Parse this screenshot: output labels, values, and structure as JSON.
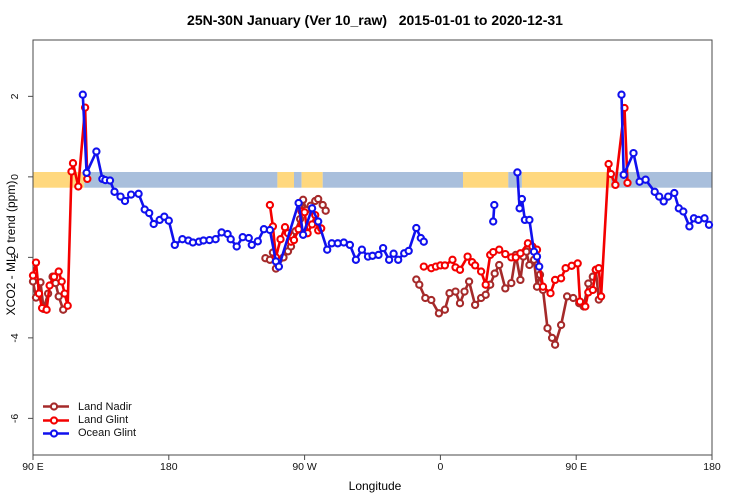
{
  "title": "25N-30N January (Ver 10_raw)   2015-01-01 to 2020-12-31",
  "chart_data": {
    "type": "line",
    "title": "25N-30N January (Ver 10_raw)   2015-01-01 to 2020-12-31",
    "xlabel": "Longitude",
    "ylabel": "XCO2 - MLO trend (ppm)",
    "legend_position": "bottom-left",
    "grid": false,
    "x_axis": {
      "range": [
        90,
        540
      ],
      "note": "longitude wraps eastward from 90E around the globe to 180",
      "ticks": [
        {
          "lon": 90,
          "label": "90 E"
        },
        {
          "lon": 180,
          "label": "180"
        },
        {
          "lon": 270,
          "label": "90 W"
        },
        {
          "lon": 360,
          "label": "0"
        },
        {
          "lon": 450,
          "label": "90 E"
        },
        {
          "lon": 540,
          "label": "180"
        }
      ]
    },
    "y_axis": {
      "range": [
        -6.91,
        3.4
      ],
      "ticks": [
        2,
        0,
        -2,
        -4,
        -6
      ]
    },
    "surface_band": {
      "top_ppm": 0.12,
      "bottom_ppm": -0.27,
      "land_color": "#FFD87E",
      "ocean_color": "#A9BFDC",
      "segments": [
        {
          "from": 90,
          "to": 124,
          "type": "land"
        },
        {
          "from": 124,
          "to": 252,
          "type": "ocean"
        },
        {
          "from": 252,
          "to": 263,
          "type": "land"
        },
        {
          "from": 263,
          "to": 268,
          "type": "ocean"
        },
        {
          "from": 268,
          "to": 282,
          "type": "land"
        },
        {
          "from": 282,
          "to": 375,
          "type": "ocean"
        },
        {
          "from": 375,
          "to": 405,
          "type": "land"
        },
        {
          "from": 405,
          "to": 414,
          "type": "ocean"
        },
        {
          "from": 414,
          "to": 473,
          "type": "land"
        },
        {
          "from": 473,
          "to": 540,
          "type": "ocean"
        }
      ]
    },
    "series": [
      {
        "name": "Land Nadir",
        "color": "#A52A2A",
        "segments": [
          [
            [
              90,
              -2.6
            ],
            [
              92,
              -3.0
            ],
            [
              95,
              -2.62
            ],
            [
              97,
              -3.28
            ],
            [
              100,
              -2.9
            ],
            [
              103,
              -2.48
            ],
            [
              105,
              -2.64
            ],
            [
              107,
              -2.97
            ],
            [
              110,
              -3.3
            ]
          ],
          [
            [
              244,
              -2.02
            ],
            [
              247,
              -2.06
            ],
            [
              249,
              -1.88
            ],
            [
              251,
              -2.28
            ],
            [
              253,
              -2.06
            ],
            [
              256,
              -2.0
            ],
            [
              259,
              -1.85
            ],
            [
              261,
              -1.73
            ],
            [
              264,
              -1.35
            ],
            [
              267,
              -1.05
            ],
            [
              269,
              -0.57
            ],
            [
              271,
              -0.82
            ],
            [
              274,
              -0.72
            ],
            [
              277,
              -0.6
            ],
            [
              279,
              -0.55
            ],
            [
              282,
              -0.7
            ],
            [
              284,
              -0.84
            ]
          ],
          [
            [
              344,
              -2.55
            ],
            [
              346,
              -2.68
            ],
            [
              350,
              -3.01
            ],
            [
              354,
              -3.06
            ],
            [
              359,
              -3.39
            ],
            [
              363,
              -3.3
            ],
            [
              366,
              -2.89
            ],
            [
              370,
              -2.85
            ],
            [
              373,
              -3.14
            ],
            [
              376,
              -2.85
            ],
            [
              379,
              -2.6
            ],
            [
              383,
              -3.18
            ],
            [
              387,
              -3.01
            ],
            [
              390,
              -2.93
            ],
            [
              393,
              -2.68
            ],
            [
              396,
              -2.4
            ],
            [
              399,
              -2.19
            ],
            [
              403,
              -2.77
            ],
            [
              407,
              -2.64
            ],
            [
              410,
              -1.94
            ],
            [
              413,
              -2.56
            ],
            [
              415,
              -1.98
            ],
            [
              417,
              -1.86
            ],
            [
              419,
              -2.19
            ],
            [
              422,
              -2.06
            ],
            [
              424,
              -2.73
            ],
            [
              426,
              -2.43
            ],
            [
              428,
              -2.81
            ],
            [
              431,
              -3.76
            ],
            [
              434,
              -4.0
            ],
            [
              436,
              -4.17
            ],
            [
              440,
              -3.68
            ],
            [
              444,
              -2.97
            ],
            [
              448,
              -3.01
            ],
            [
              452,
              -3.14
            ],
            [
              455,
              -3.22
            ],
            [
              458,
              -2.65
            ],
            [
              461,
              -2.48
            ],
            [
              463,
              -2.31
            ],
            [
              465,
              -3.05
            ]
          ]
        ]
      },
      {
        "name": "Land Glint",
        "color": "#F40000",
        "segments": [
          [
            [
              90,
              -2.45
            ],
            [
              92,
              -2.13
            ],
            [
              94,
              -2.9
            ],
            [
              96,
              -3.26
            ],
            [
              99,
              -3.3
            ],
            [
              101,
              -2.7
            ],
            [
              104,
              -2.48
            ],
            [
              107,
              -2.35
            ],
            [
              109,
              -2.6
            ],
            [
              111,
              -2.9
            ],
            [
              113,
              -3.2
            ],
            [
              115.5,
              0.13
            ],
            [
              116.5,
              0.34
            ],
            [
              120,
              -0.24
            ],
            [
              124.5,
              1.72
            ],
            [
              126,
              -0.05
            ]
          ],
          [
            [
              247,
              -0.7
            ],
            [
              249,
              -1.23
            ],
            [
              251,
              -2.0
            ],
            [
              254,
              -1.55
            ],
            [
              257,
              -1.25
            ],
            [
              259,
              -1.4
            ],
            [
              261,
              -1.61
            ],
            [
              263,
              -1.57
            ],
            [
              266,
              -1.3
            ],
            [
              268,
              -0.86
            ],
            [
              270,
              -0.88
            ],
            [
              272,
              -1.4
            ],
            [
              275,
              -1.18
            ],
            [
              277,
              -0.95
            ],
            [
              279,
              -1.33
            ],
            [
              281,
              -1.28
            ]
          ],
          [
            [
              349,
              -2.23
            ],
            [
              354,
              -2.27
            ],
            [
              357,
              -2.23
            ],
            [
              360,
              -2.2
            ],
            [
              363,
              -2.2
            ],
            [
              368,
              -2.06
            ],
            [
              370,
              -2.25
            ],
            [
              373,
              -2.31
            ],
            [
              378,
              -1.98
            ],
            [
              381,
              -2.12
            ],
            [
              383,
              -2.2
            ],
            [
              387,
              -2.35
            ],
            [
              390,
              -2.68
            ],
            [
              393,
              -1.94
            ],
            [
              395,
              -1.87
            ],
            [
              399,
              -1.81
            ],
            [
              403,
              -1.92
            ],
            [
              407,
              -2.0
            ],
            [
              410,
              -2.0
            ],
            [
              413,
              -1.9
            ],
            [
              418,
              -1.65
            ],
            [
              421,
              -1.73
            ],
            [
              424,
              -1.81
            ],
            [
              428,
              -2.73
            ],
            [
              433,
              -2.89
            ],
            [
              436,
              -2.56
            ],
            [
              440,
              -2.52
            ],
            [
              443,
              -2.27
            ],
            [
              447,
              -2.21
            ],
            [
              451,
              -2.15
            ],
            [
              452.5,
              -3.1
            ],
            [
              456,
              -3.22
            ],
            [
              458,
              -2.87
            ],
            [
              461,
              -2.81
            ],
            [
              463,
              -2.31
            ],
            [
              465,
              -2.27
            ],
            [
              466.5,
              -2.97
            ],
            [
              471.5,
              0.32
            ],
            [
              473,
              0.07
            ],
            [
              476,
              -0.2
            ],
            [
              482,
              1.71
            ],
            [
              484,
              -0.15
            ]
          ]
        ]
      },
      {
        "name": "Ocean Glint",
        "color": "#1010EE",
        "segments": [
          [
            [
              123,
              2.04
            ],
            [
              125.5,
              0.1
            ],
            [
              132,
              0.63
            ],
            [
              136,
              -0.05
            ],
            [
              138,
              -0.08
            ],
            [
              141,
              -0.09
            ],
            [
              144,
              -0.37
            ],
            [
              148,
              -0.49
            ],
            [
              151,
              -0.6
            ],
            [
              155,
              -0.44
            ],
            [
              160,
              -0.42
            ],
            [
              164,
              -0.81
            ],
            [
              167,
              -0.9
            ],
            [
              170,
              -1.17
            ],
            [
              174,
              -1.07
            ],
            [
              177,
              -0.99
            ],
            [
              180,
              -1.09
            ],
            [
              184,
              -1.69
            ],
            [
              189,
              -1.55
            ],
            [
              193,
              -1.58
            ],
            [
              196,
              -1.63
            ],
            [
              200,
              -1.61
            ],
            [
              203,
              -1.58
            ],
            [
              207,
              -1.57
            ],
            [
              211,
              -1.55
            ],
            [
              215,
              -1.38
            ],
            [
              219,
              -1.42
            ],
            [
              221,
              -1.55
            ],
            [
              225,
              -1.73
            ],
            [
              229,
              -1.5
            ],
            [
              233,
              -1.52
            ],
            [
              235,
              -1.69
            ],
            [
              239,
              -1.6
            ],
            [
              243,
              -1.3
            ],
            [
              247,
              -1.32
            ],
            [
              251,
              -2.1
            ],
            [
              253,
              -2.23
            ],
            [
              266,
              -0.65
            ],
            [
              269,
              -1.44
            ],
            [
              275,
              -0.78
            ],
            [
              279,
              -1.11
            ],
            [
              285,
              -1.81
            ],
            [
              288,
              -1.65
            ],
            [
              292,
              -1.65
            ],
            [
              296,
              -1.63
            ],
            [
              300,
              -1.69
            ],
            [
              304,
              -2.06
            ],
            [
              308,
              -1.81
            ],
            [
              312,
              -1.98
            ],
            [
              315,
              -1.96
            ],
            [
              319,
              -1.94
            ],
            [
              322,
              -1.77
            ],
            [
              326,
              -2.06
            ],
            [
              329,
              -1.91
            ],
            [
              332,
              -2.06
            ],
            [
              336,
              -1.9
            ],
            [
              339,
              -1.84
            ],
            [
              344,
              -1.27
            ],
            [
              347,
              -1.52
            ],
            [
              349,
              -1.61
            ]
          ],
          [
            [
              395,
              -1.11
            ],
            [
              395.7,
              -0.7
            ]
          ],
          [
            [
              411,
              0.11
            ],
            [
              412.5,
              -0.78
            ],
            [
              414,
              -0.55
            ],
            [
              416,
              -1.07
            ],
            [
              419,
              -1.07
            ],
            [
              422,
              -1.86
            ],
            [
              424,
              -1.98
            ],
            [
              425.5,
              -2.23
            ]
          ],
          [
            [
              480,
              2.04
            ],
            [
              481.5,
              0.05
            ],
            [
              488,
              0.59
            ],
            [
              492,
              -0.12
            ],
            [
              496,
              -0.07
            ],
            [
              502,
              -0.37
            ],
            [
              505,
              -0.49
            ],
            [
              508,
              -0.61
            ],
            [
              511,
              -0.49
            ],
            [
              515,
              -0.4
            ],
            [
              518,
              -0.78
            ],
            [
              521,
              -0.86
            ],
            [
              525,
              -1.23
            ],
            [
              528,
              -1.03
            ],
            [
              531,
              -1.07
            ],
            [
              535,
              -1.03
            ],
            [
              538,
              -1.19
            ]
          ]
        ]
      }
    ]
  }
}
